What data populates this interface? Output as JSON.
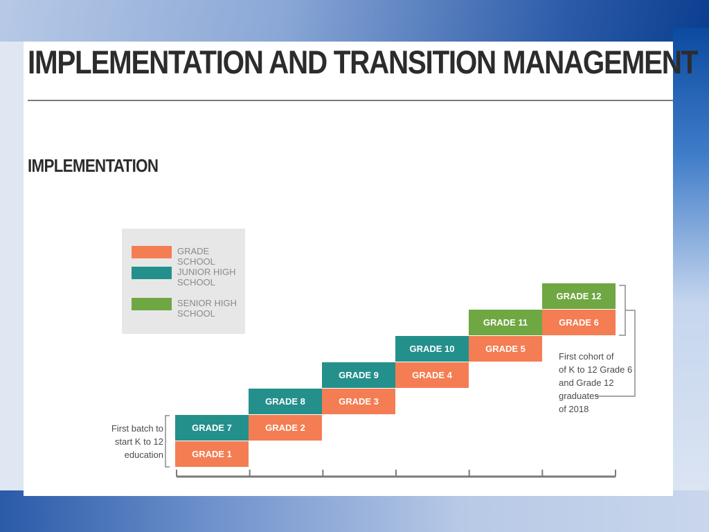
{
  "title": "IMPLEMENTATION AND TRANSITION MANAGEMENT",
  "section_title": "IMPLEMENTATION",
  "colors": {
    "grade_school": "#f47d53",
    "junior_high": "#24908c",
    "senior_high": "#6fa743"
  },
  "legend": [
    {
      "label": "GRADE SCHOOL",
      "color": "#f47d53"
    },
    {
      "label": "JUNIOR HIGH SCHOOL",
      "color": "#24908c"
    },
    {
      "label": "SENIOR HIGH SCHOOL",
      "color": "#6fa743"
    }
  ],
  "stages": [
    {
      "lower": "GRADE 1",
      "upper": "GRADE 7",
      "lower_level": "grade_school",
      "upper_level": "junior_high"
    },
    {
      "lower": "GRADE 2",
      "upper": "GRADE 8",
      "lower_level": "grade_school",
      "upper_level": "junior_high"
    },
    {
      "lower": "GRADE 3",
      "upper": "GRADE 9",
      "lower_level": "grade_school",
      "upper_level": "junior_high"
    },
    {
      "lower": "GRADE 4",
      "upper": "GRADE 10",
      "lower_level": "grade_school",
      "upper_level": "junior_high"
    },
    {
      "lower": "GRADE 5",
      "upper": "GRADE 11",
      "lower_level": "grade_school",
      "upper_level": "senior_high"
    },
    {
      "lower": "GRADE 6",
      "upper": "GRADE 12",
      "lower_level": "grade_school",
      "upper_level": "senior_high"
    }
  ],
  "notes": {
    "first_batch": [
      "First batch to",
      "start K to 12",
      "education"
    ],
    "first_cohort": [
      "First cohort of",
      "of K to 12 Grade 6",
      "and Grade 12",
      "graduates",
      "of 2018"
    ]
  }
}
